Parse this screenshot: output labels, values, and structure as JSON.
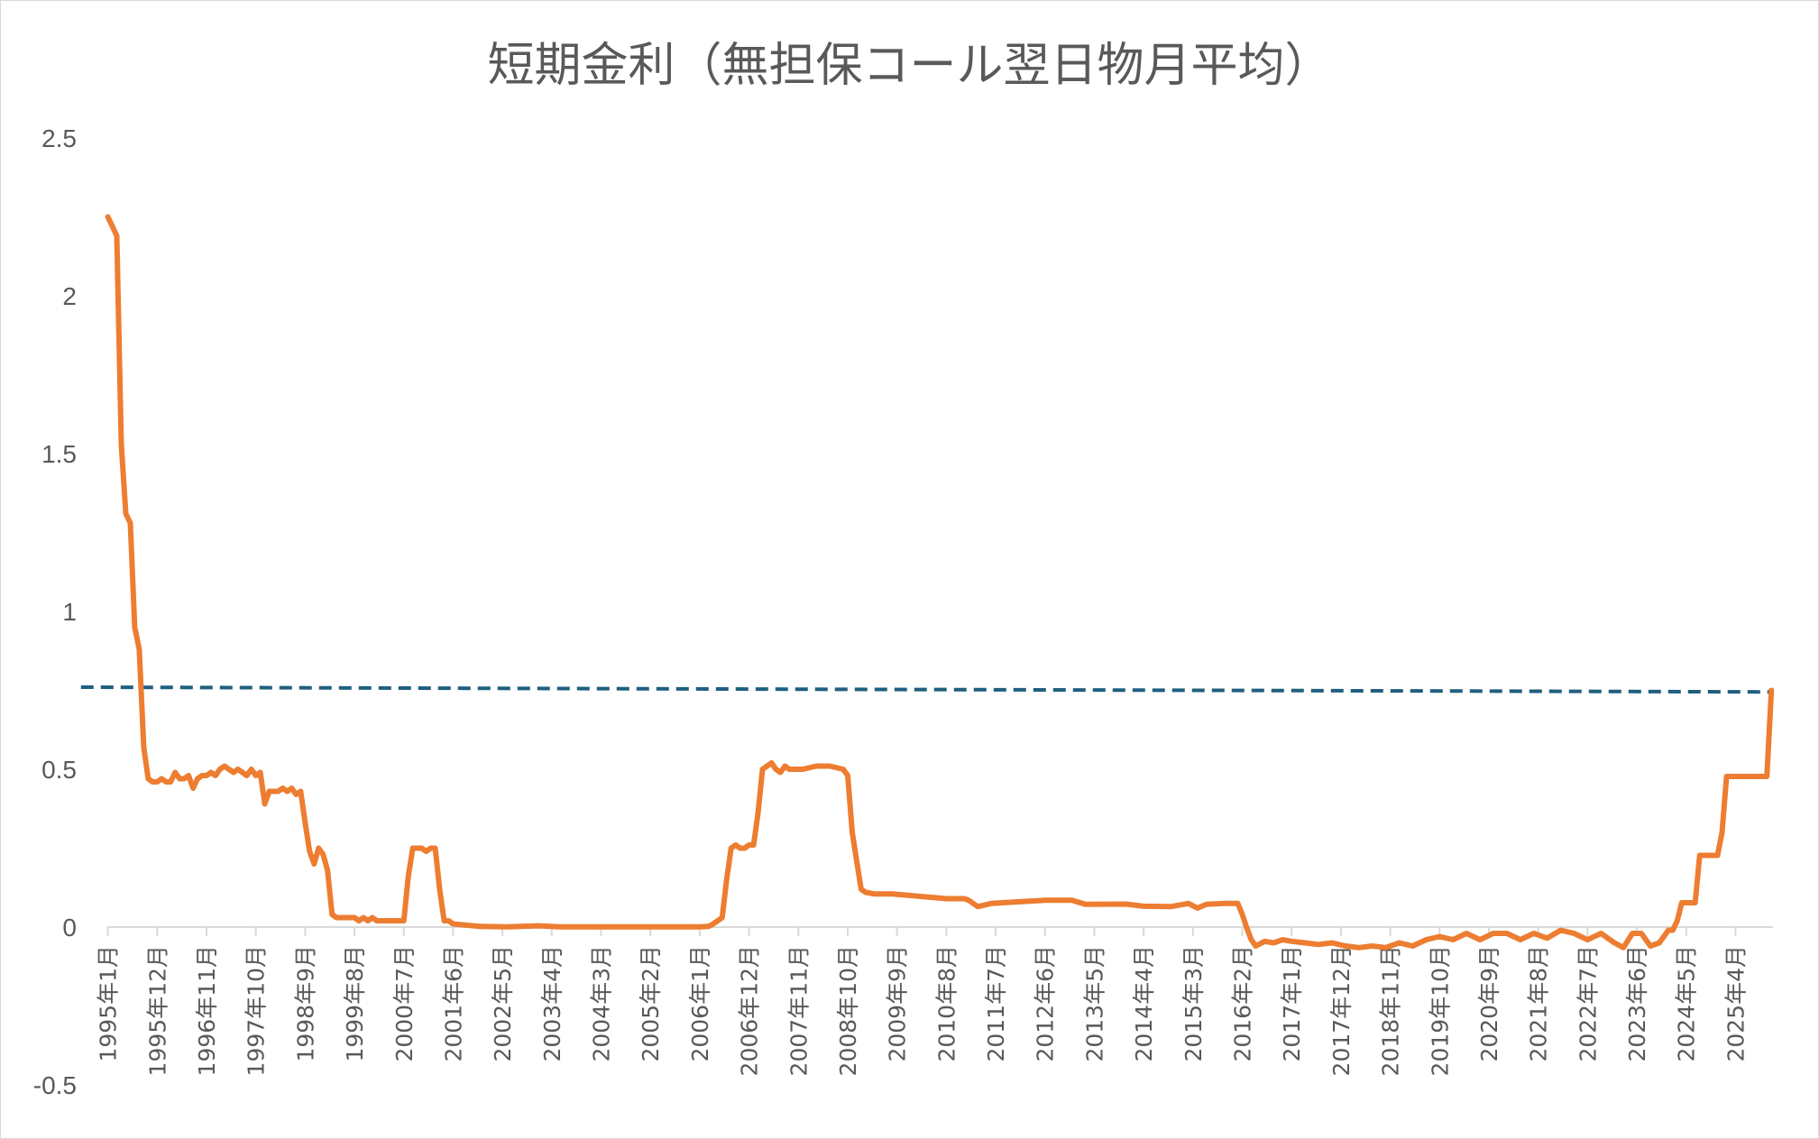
{
  "chart_data": {
    "type": "line",
    "title": "短期金利（無担保コール翌日物月平均）",
    "xlabel": "",
    "ylabel": "",
    "ylim": [
      -0.5,
      2.5
    ],
    "yticks": [
      "2.5",
      "2",
      "1.5",
      "1",
      "0.5",
      "0",
      "-0.5"
    ],
    "ytick_values": [
      2.5,
      2,
      1.5,
      1,
      0.5,
      0,
      -0.5
    ],
    "xrange": [
      "1995-01",
      "2025-12"
    ],
    "xticks": [
      "1995年1月",
      "1995年12月",
      "1996年11月",
      "1997年10月",
      "1998年9月",
      "1999年8月",
      "2000年7月",
      "2001年6月",
      "2002年5月",
      "2003年4月",
      "2004年3月",
      "2005年2月",
      "2006年1月",
      "2006年12月",
      "2007年11月",
      "2008年10月",
      "2009年9月",
      "2010年8月",
      "2011年7月",
      "2012年6月",
      "2013年5月",
      "2014年4月",
      "2015年3月",
      "2016年2月",
      "2017年1月",
      "2017年12月",
      "2018年11月",
      "2019年10月",
      "2020年9月",
      "2021年8月",
      "2022年7月",
      "2023年6月",
      "2024年5月",
      "2025年4月"
    ],
    "grid": false,
    "legend": "none",
    "series": [
      {
        "color": "#ed7d31",
        "points": [
          [
            "1995-01",
            2.25
          ],
          [
            "1995-02",
            2.22
          ],
          [
            "1995-03",
            2.19
          ],
          [
            "1995-04",
            1.53
          ],
          [
            "1995-05",
            1.31
          ],
          [
            "1995-06",
            1.28
          ],
          [
            "1995-07",
            0.95
          ],
          [
            "1995-08",
            0.88
          ],
          [
            "1995-09",
            0.57
          ],
          [
            "1995-10",
            0.47
          ],
          [
            "1995-11",
            0.46
          ],
          [
            "1995-12",
            0.46
          ],
          [
            "1996-01",
            0.47
          ],
          [
            "1996-02",
            0.46
          ],
          [
            "1996-03",
            0.46
          ],
          [
            "1996-04",
            0.49
          ],
          [
            "1996-05",
            0.47
          ],
          [
            "1996-06",
            0.47
          ],
          [
            "1996-07",
            0.48
          ],
          [
            "1996-08",
            0.44
          ],
          [
            "1996-09",
            0.47
          ],
          [
            "1996-10",
            0.48
          ],
          [
            "1996-11",
            0.48
          ],
          [
            "1996-12",
            0.49
          ],
          [
            "1997-01",
            0.48
          ],
          [
            "1997-02",
            0.5
          ],
          [
            "1997-03",
            0.51
          ],
          [
            "1997-04",
            0.5
          ],
          [
            "1997-05",
            0.49
          ],
          [
            "1997-06",
            0.5
          ],
          [
            "1997-07",
            0.49
          ],
          [
            "1997-08",
            0.48
          ],
          [
            "1997-09",
            0.5
          ],
          [
            "1997-10",
            0.48
          ],
          [
            "1997-11",
            0.49
          ],
          [
            "1997-12",
            0.39
          ],
          [
            "1998-01",
            0.43
          ],
          [
            "1998-02",
            0.43
          ],
          [
            "1998-03",
            0.43
          ],
          [
            "1998-04",
            0.44
          ],
          [
            "1998-05",
            0.43
          ],
          [
            "1998-06",
            0.44
          ],
          [
            "1998-07",
            0.42
          ],
          [
            "1998-08",
            0.43
          ],
          [
            "1998-09",
            0.33
          ],
          [
            "1998-10",
            0.24
          ],
          [
            "1998-11",
            0.2
          ],
          [
            "1998-12",
            0.25
          ],
          [
            "1999-01",
            0.23
          ],
          [
            "1999-02",
            0.18
          ],
          [
            "1999-03",
            0.04
          ],
          [
            "1999-04",
            0.03
          ],
          [
            "1999-06",
            0.03
          ],
          [
            "1999-08",
            0.03
          ],
          [
            "1999-09",
            0.02
          ],
          [
            "1999-10",
            0.03
          ],
          [
            "1999-11",
            0.02
          ],
          [
            "1999-12",
            0.03
          ],
          [
            "2000-01",
            0.02
          ],
          [
            "2000-04",
            0.02
          ],
          [
            "2000-07",
            0.02
          ],
          [
            "2000-08",
            0.16
          ],
          [
            "2000-09",
            0.25
          ],
          [
            "2000-10",
            0.25
          ],
          [
            "2000-11",
            0.25
          ],
          [
            "2000-12",
            0.24
          ],
          [
            "2001-01",
            0.25
          ],
          [
            "2001-02",
            0.25
          ],
          [
            "2001-03",
            0.12
          ],
          [
            "2001-04",
            0.02
          ],
          [
            "2001-05",
            0.02
          ],
          [
            "2001-06",
            0.01
          ],
          [
            "2001-09",
            0.006
          ],
          [
            "2001-12",
            0.002
          ],
          [
            "2002-06",
            0.001
          ],
          [
            "2003-01",
            0.004
          ],
          [
            "2003-06",
            0.001
          ],
          [
            "2004-01",
            0.001
          ],
          [
            "2005-01",
            0.001
          ],
          [
            "2006-01",
            0.001
          ],
          [
            "2006-03",
            0.002
          ],
          [
            "2006-04",
            0.01
          ],
          [
            "2006-05",
            0.02
          ],
          [
            "2006-06",
            0.03
          ],
          [
            "2006-07",
            0.15
          ],
          [
            "2006-08",
            0.25
          ],
          [
            "2006-09",
            0.26
          ],
          [
            "2006-10",
            0.25
          ],
          [
            "2006-11",
            0.25
          ],
          [
            "2006-12",
            0.26
          ],
          [
            "2007-01",
            0.26
          ],
          [
            "2007-02",
            0.36
          ],
          [
            "2007-03",
            0.5
          ],
          [
            "2007-04",
            0.51
          ],
          [
            "2007-05",
            0.52
          ],
          [
            "2007-06",
            0.5
          ],
          [
            "2007-07",
            0.49
          ],
          [
            "2007-08",
            0.51
          ],
          [
            "2007-09",
            0.5
          ],
          [
            "2007-12",
            0.5
          ],
          [
            "2008-03",
            0.51
          ],
          [
            "2008-06",
            0.51
          ],
          [
            "2008-09",
            0.5
          ],
          [
            "2008-10",
            0.48
          ],
          [
            "2008-11",
            0.3
          ],
          [
            "2008-12",
            0.21
          ],
          [
            "2009-01",
            0.12
          ],
          [
            "2009-02",
            0.11
          ],
          [
            "2009-04",
            0.105
          ],
          [
            "2009-08",
            0.105
          ],
          [
            "2009-12",
            0.1
          ],
          [
            "2010-04",
            0.095
          ],
          [
            "2010-08",
            0.09
          ],
          [
            "2010-12",
            0.09
          ],
          [
            "2011-01",
            0.085
          ],
          [
            "2011-03",
            0.065
          ],
          [
            "2011-06",
            0.075
          ],
          [
            "2011-12",
            0.08
          ],
          [
            "2012-06",
            0.085
          ],
          [
            "2012-12",
            0.085
          ],
          [
            "2013-03",
            0.072
          ],
          [
            "2013-12",
            0.073
          ],
          [
            "2014-04",
            0.066
          ],
          [
            "2014-10",
            0.065
          ],
          [
            "2015-02",
            0.075
          ],
          [
            "2015-04",
            0.06
          ],
          [
            "2015-06",
            0.072
          ],
          [
            "2015-10",
            0.075
          ],
          [
            "2016-01",
            0.075
          ],
          [
            "2016-02",
            0.04
          ],
          [
            "2016-03",
            -0.003
          ],
          [
            "2016-04",
            -0.04
          ],
          [
            "2016-05",
            -0.06
          ],
          [
            "2016-07",
            -0.045
          ],
          [
            "2016-09",
            -0.05
          ],
          [
            "2016-11",
            -0.04
          ],
          [
            "2017-01",
            -0.045
          ],
          [
            "2017-04",
            -0.05
          ],
          [
            "2017-07",
            -0.055
          ],
          [
            "2017-10",
            -0.05
          ],
          [
            "2018-01",
            -0.06
          ],
          [
            "2018-04",
            -0.065
          ],
          [
            "2018-07",
            -0.06
          ],
          [
            "2018-10",
            -0.065
          ],
          [
            "2019-01",
            -0.05
          ],
          [
            "2019-04",
            -0.06
          ],
          [
            "2019-07",
            -0.04
          ],
          [
            "2019-10",
            -0.03
          ],
          [
            "2020-01",
            -0.04
          ],
          [
            "2020-04",
            -0.02
          ],
          [
            "2020-07",
            -0.04
          ],
          [
            "2020-10",
            -0.02
          ],
          [
            "2021-01",
            -0.02
          ],
          [
            "2021-04",
            -0.04
          ],
          [
            "2021-07",
            -0.02
          ],
          [
            "2021-10",
            -0.035
          ],
          [
            "2022-01",
            -0.01
          ],
          [
            "2022-04",
            -0.02
          ],
          [
            "2022-07",
            -0.04
          ],
          [
            "2022-10",
            -0.02
          ],
          [
            "2023-01",
            -0.05
          ],
          [
            "2023-03",
            -0.065
          ],
          [
            "2023-05",
            -0.02
          ],
          [
            "2023-07",
            -0.02
          ],
          [
            "2023-09",
            -0.06
          ],
          [
            "2023-11",
            -0.05
          ],
          [
            "2024-01",
            -0.01
          ],
          [
            "2024-02",
            -0.01
          ],
          [
            "2024-03",
            0.02
          ],
          [
            "2024-04",
            0.077
          ],
          [
            "2024-07",
            0.077
          ],
          [
            "2024-08",
            0.227
          ],
          [
            "2024-12",
            0.227
          ],
          [
            "2025-01",
            0.3
          ],
          [
            "2025-02",
            0.477
          ],
          [
            "2025-11",
            0.477
          ],
          [
            "2025-12",
            0.75
          ]
        ]
      }
    ],
    "trendline": {
      "type": "linear",
      "color": "#1f5f7f",
      "style": "dashed",
      "start_value": 0.76,
      "end_value": 0.745
    }
  }
}
